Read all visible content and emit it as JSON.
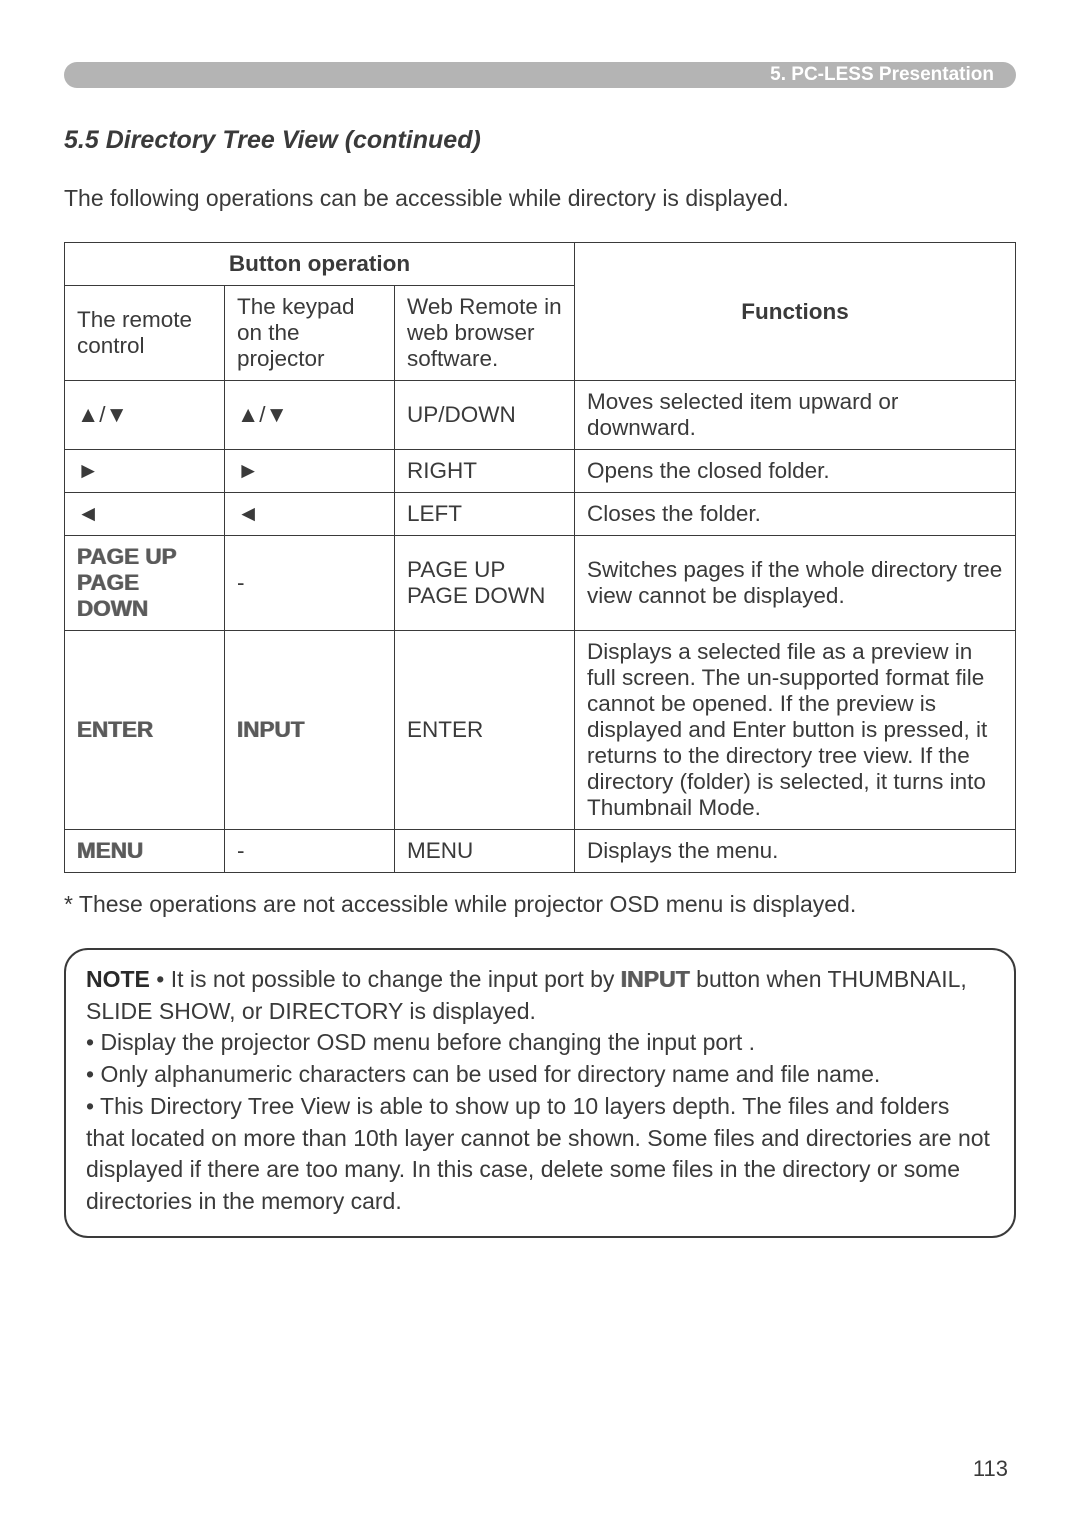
{
  "header": {
    "chapter": "5. PC-LESS Presentation",
    "bg_color": "#b4b4b4",
    "text_color": "#ffffff"
  },
  "section_title": "5.5 Directory Tree View (continued)",
  "intro": "The following operations can be accessible while directory is displayed.",
  "table": {
    "header": {
      "button_op": "Button operation",
      "functions": "Functions",
      "remote": "The remote control",
      "keypad": "The keypad on the projector",
      "web": "Web Remote in web browser software."
    },
    "rows": [
      {
        "remote": "▲/▼",
        "keypad": "▲/▼",
        "web": "UP/DOWN",
        "func": "Moves selected item upward or downward."
      },
      {
        "remote": "►",
        "keypad": "►",
        "web": "RIGHT",
        "func": "Opens the closed folder."
      },
      {
        "remote": "◄",
        "keypad": "◄",
        "web": "LEFT",
        "func": "Closes the folder."
      },
      {
        "remote": "PAGE UP\nPAGE DOWN",
        "keypad": "-",
        "web": "PAGE UP\nPAGE DOWN",
        "func": "Switches pages if the whole directory tree view cannot be displayed."
      },
      {
        "remote": "ENTER",
        "keypad": "INPUT",
        "web": "ENTER",
        "func": "Displays a selected file as a preview in full screen. The un-supported format file cannot be opened. If the preview is displayed and Enter button is pressed, it returns to the directory tree view. If the directory (folder) is selected, it turns into Thumbnail Mode."
      },
      {
        "remote": "MENU",
        "keypad": "-",
        "web": "MENU",
        "func": "Displays the menu."
      }
    ]
  },
  "footnote": "* These operations are not accessible while projector OSD menu is displayed.",
  "note": {
    "label": "NOTE",
    "line1_prefix": "  • It is not possible to change the input port by ",
    "line1_bold": "INPUT",
    "line1_suffix": " button when THUMBNAIL, SLIDE SHOW, or DIRECTORY is displayed.",
    "line2": "• Display the projector OSD menu before changing the input port .",
    "line3": "• Only alphanumeric characters can be used for directory name and file name.",
    "line4": "• This Directory Tree View is able to show up to 10 layers depth. The files and folders that located on more than 10th layer cannot be shown. Some files and directories are not displayed if there are too many. In this case, delete some files in the directory or some directories in the memory card."
  },
  "page_number": "113"
}
